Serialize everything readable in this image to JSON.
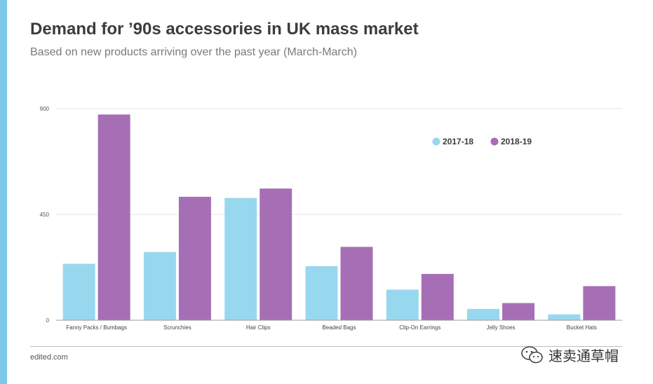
{
  "title": "Demand for ’90s accessories in UK mass market",
  "subtitle": "Based on new products arriving over the past year (March-March)",
  "footer": {
    "source": "edited.com"
  },
  "watermark": {
    "text": "速卖通草帽",
    "icon": "wechat-icon"
  },
  "colors": {
    "accent": "#7cc8e8",
    "series_2017": "#97d8ee",
    "series_2018": "#a66fb5",
    "grid": "#e6e6e6",
    "axis": "#9e9e9e"
  },
  "chart_data": {
    "type": "bar",
    "title": "Demand for ’90s accessories in UK mass market",
    "subtitle": "Based on new products arriving over the past year (March-March)",
    "xlabel": "",
    "ylabel": "",
    "ylim": [
      0,
      900
    ],
    "yticks": [
      0,
      450,
      900
    ],
    "grid": true,
    "legend_position": "top-right",
    "categories": [
      "Fanny Packs / Bumbags",
      "Scrunchies",
      "Hair Clips",
      "Beaded Bags",
      "Clip-On Earrings",
      "Jelly Shoes",
      "Bucket Hats"
    ],
    "series": [
      {
        "name": "2017-18",
        "color": "#97d8ee",
        "values": [
          240,
          290,
          520,
          230,
          130,
          48,
          25
        ]
      },
      {
        "name": "2018-19",
        "color": "#a66fb5",
        "values": [
          875,
          525,
          560,
          312,
          197,
          73,
          145
        ]
      }
    ]
  }
}
